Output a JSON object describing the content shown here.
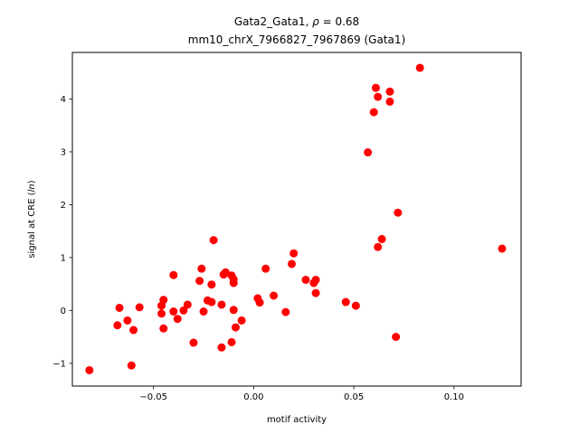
{
  "chart_data": {
    "type": "scatter",
    "title_line1_prefix": "Gata2_Gata1, ",
    "title_rho_symbol": "ρ",
    "title_rho_value": " = 0.68",
    "title_line2": "mm10_chrX_7966827_7967869 (Gata1)",
    "xlabel": "motif activity",
    "ylabel_prefix": "signal at CRE (",
    "ylabel_italic": "ln",
    "ylabel_suffix": ")",
    "xlim": [
      -0.0905,
      0.1335
    ],
    "ylim": [
      -1.43,
      4.88
    ],
    "x_ticks": [
      -0.05,
      0.0,
      0.05,
      0.1
    ],
    "x_tick_labels": [
      "−0.05",
      "0.00",
      "0.05",
      "0.10"
    ],
    "y_ticks": [
      -1,
      0,
      1,
      2,
      3,
      4
    ],
    "y_tick_labels": [
      "−1",
      "0",
      "1",
      "2",
      "3",
      "4"
    ],
    "marker_color": "#ff0000",
    "grid": false,
    "points": [
      {
        "x": -0.082,
        "y": -1.13
      },
      {
        "x": -0.068,
        "y": -0.28
      },
      {
        "x": -0.067,
        "y": 0.05
      },
      {
        "x": -0.063,
        "y": -0.19
      },
      {
        "x": -0.061,
        "y": -1.04
      },
      {
        "x": -0.06,
        "y": -0.37
      },
      {
        "x": -0.057,
        "y": 0.06
      },
      {
        "x": -0.046,
        "y": -0.06
      },
      {
        "x": -0.046,
        "y": 0.09
      },
      {
        "x": -0.045,
        "y": 0.2
      },
      {
        "x": -0.045,
        "y": -0.34
      },
      {
        "x": -0.04,
        "y": 0.67
      },
      {
        "x": -0.04,
        "y": -0.02
      },
      {
        "x": -0.038,
        "y": -0.16
      },
      {
        "x": -0.035,
        "y": 0.0
      },
      {
        "x": -0.033,
        "y": 0.11
      },
      {
        "x": -0.03,
        "y": -0.61
      },
      {
        "x": -0.027,
        "y": 0.56
      },
      {
        "x": -0.026,
        "y": 0.79
      },
      {
        "x": -0.025,
        "y": -0.02
      },
      {
        "x": -0.023,
        "y": 0.19
      },
      {
        "x": -0.021,
        "y": 0.49
      },
      {
        "x": -0.021,
        "y": 0.16
      },
      {
        "x": -0.02,
        "y": 1.33
      },
      {
        "x": -0.016,
        "y": 0.11
      },
      {
        "x": -0.016,
        "y": -0.7
      },
      {
        "x": -0.015,
        "y": 0.68
      },
      {
        "x": -0.014,
        "y": 0.72
      },
      {
        "x": -0.011,
        "y": 0.66
      },
      {
        "x": -0.011,
        "y": -0.6
      },
      {
        "x": -0.01,
        "y": 0.59
      },
      {
        "x": -0.01,
        "y": 0.52
      },
      {
        "x": -0.01,
        "y": 0.01
      },
      {
        "x": -0.009,
        "y": -0.32
      },
      {
        "x": -0.006,
        "y": -0.19
      },
      {
        "x": 0.002,
        "y": 0.23
      },
      {
        "x": 0.003,
        "y": 0.15
      },
      {
        "x": 0.006,
        "y": 0.79
      },
      {
        "x": 0.01,
        "y": 0.28
      },
      {
        "x": 0.016,
        "y": -0.03
      },
      {
        "x": 0.019,
        "y": 0.88
      },
      {
        "x": 0.02,
        "y": 1.08
      },
      {
        "x": 0.026,
        "y": 0.58
      },
      {
        "x": 0.03,
        "y": 0.52
      },
      {
        "x": 0.031,
        "y": 0.58
      },
      {
        "x": 0.031,
        "y": 0.33
      },
      {
        "x": 0.046,
        "y": 0.16
      },
      {
        "x": 0.051,
        "y": 0.09
      },
      {
        "x": 0.057,
        "y": 2.99
      },
      {
        "x": 0.06,
        "y": 3.75
      },
      {
        "x": 0.061,
        "y": 4.21
      },
      {
        "x": 0.062,
        "y": 4.04
      },
      {
        "x": 0.062,
        "y": 1.2
      },
      {
        "x": 0.064,
        "y": 1.35
      },
      {
        "x": 0.068,
        "y": 4.14
      },
      {
        "x": 0.068,
        "y": 3.95
      },
      {
        "x": 0.071,
        "y": -0.5
      },
      {
        "x": 0.072,
        "y": 1.85
      },
      {
        "x": 0.083,
        "y": 4.59
      },
      {
        "x": 0.124,
        "y": 1.17
      }
    ]
  }
}
